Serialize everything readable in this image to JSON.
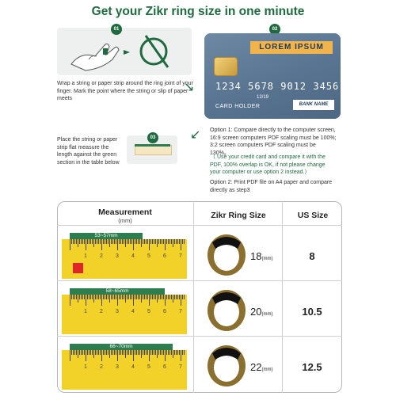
{
  "title": "Get your Zikr ring size in one minute",
  "steps": {
    "s1": {
      "num": "01",
      "text": "Wrap a string or paper strip around the ring joint of your finger. Mark the point where the string or slip of paper meets"
    },
    "s2": {
      "num": "02"
    },
    "s3": {
      "num": "03",
      "text": "Place the string or paper strip flat measure the length against the green section in the table below"
    }
  },
  "card": {
    "lorem": "LOREM IPSUM",
    "number": "1234 5678 9012 3456",
    "expiry": "12/19",
    "holder": "CARD HOLDER",
    "bank": "BANK NAME"
  },
  "options": {
    "opt1": "Option 1: Compare directly to the computer screen, 16:9 screen computers PDF scaling must be 100%; 3:2 screen computers PDF scaling must be 130%。",
    "note": "（ Use your credit card and compare it with the PDF, 100% overlap is OK, if not please change your computer or use option 2 instead.）",
    "opt2": "Option 2: Print PDF file on A4 paper and compare directly as step3"
  },
  "table": {
    "headers": {
      "measurement": "Measurement",
      "measurement_unit": "(mm)",
      "ring_size": "Zikr Ring Size",
      "us_size": "US Size"
    },
    "rows": [
      {
        "range": "53~57mm",
        "ring": "18",
        "unit": "(mm)",
        "us": "8"
      },
      {
        "range": "58~65mm",
        "ring": "20",
        "unit": "(mm)",
        "us": "10.5"
      },
      {
        "range": "66~70mm",
        "ring": "22",
        "unit": "(mm)",
        "us": "12.5"
      }
    ],
    "ruler_labels": [
      "1",
      "2",
      "3",
      "4",
      "5",
      "6",
      "7"
    ]
  },
  "colors": {
    "brand_green": "#1f6b3f",
    "ruler_yellow": "#f2d228",
    "card_blue": "#5b7893",
    "accent_orange": "#f1b44c"
  }
}
